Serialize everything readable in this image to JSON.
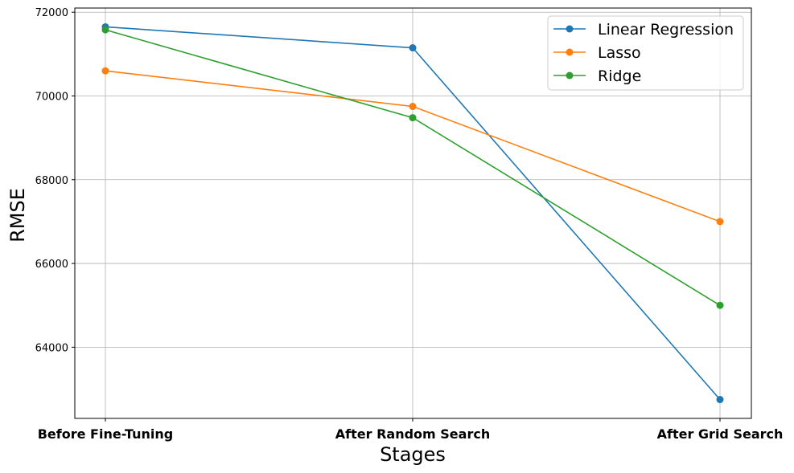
{
  "chart_data": {
    "type": "line",
    "categories": [
      "Before Fine-Tuning",
      "After Random Search",
      "After Grid Search"
    ],
    "series": [
      {
        "name": "Linear Regression",
        "color": "#1f77b4",
        "values": [
          71650,
          71150,
          62750
        ]
      },
      {
        "name": "Lasso",
        "color": "#ff7f0e",
        "values": [
          70600,
          69750,
          67000
        ]
      },
      {
        "name": "Ridge",
        "color": "#2ca02c",
        "values": [
          71580,
          69480,
          65000
        ]
      }
    ],
    "y_ticks": [
      "64000",
      "66000",
      "68000",
      "70000",
      "72000"
    ],
    "xlabel": "Stages",
    "ylabel": "RMSE",
    "ylim": [
      62300,
      72100
    ],
    "grid": true,
    "legend_position": "top-right"
  }
}
